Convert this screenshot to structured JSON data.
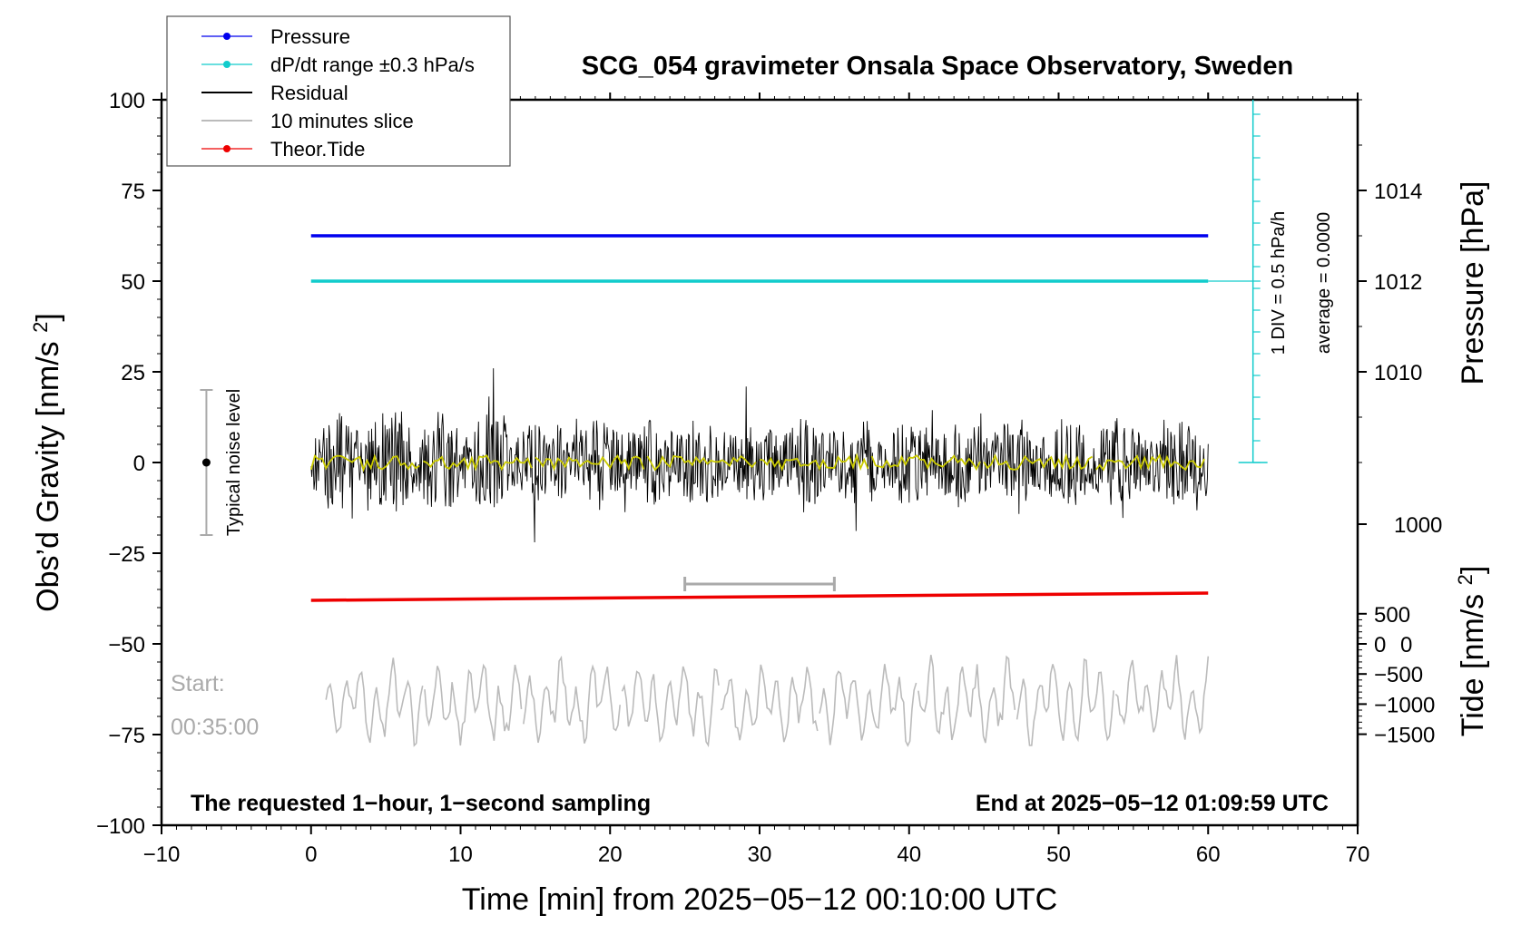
{
  "chart_data": {
    "type": "line",
    "title": "SCG_054 gravimeter Onsala Space Observatory, Sweden",
    "xlabel": "Time [min] from 2025−05−12 00:10:00 UTC",
    "ylabel_left": "Obs’d Gravity [nm/s2]",
    "ylabel_right_top": "Pressure [hPa]",
    "ylabel_right_bottom": "Tide [nm/s2]",
    "xlim": [
      -10,
      70
    ],
    "ylim": [
      -100,
      100
    ],
    "x_ticks": [
      "−10",
      "0",
      "10",
      "20",
      "30",
      "40",
      "50",
      "60",
      "70"
    ],
    "y_ticks": [
      "−100",
      "−75",
      "−50",
      "−25",
      "0",
      "25",
      "50",
      "75",
      "100"
    ],
    "pressure_ticks": [
      "1010",
      "1012",
      "1014"
    ],
    "pressure_ticks_lower": [
      "1000"
    ],
    "tide_ticks": [
      "−1500",
      "−1000",
      "−500",
      "0",
      "500"
    ],
    "legend": [
      {
        "label": "Pressure",
        "color": "#0000ee",
        "marker": true
      },
      {
        "label": "dP/dt range ±0.3 hPa/s",
        "color": "#11cccc",
        "marker": true
      },
      {
        "label": "Residual",
        "color": "#000000",
        "marker": false
      },
      {
        "label": "10 minutes slice",
        "color": "#bbbbbb",
        "marker": false
      },
      {
        "label": "Theor.Tide",
        "color": "#ee0000",
        "marker": true
      }
    ],
    "series": [
      {
        "name": "Pressure",
        "x": [
          0,
          60
        ],
        "y": [
          62.5,
          62.5
        ],
        "color": "#0000ee"
      },
      {
        "name": "dP/dt range ±0.3 hPa/s",
        "x": [
          0,
          60
        ],
        "y": [
          50,
          50
        ],
        "color": "#11cccc"
      },
      {
        "name": "Theor.Tide",
        "x": [
          0,
          60
        ],
        "y": [
          -38,
          -36
        ],
        "color": "#ee0000"
      },
      {
        "name": "Residual",
        "x_range": [
          0,
          60
        ],
        "center": 0,
        "amplitude_range": [
          -22,
          31
        ],
        "color": "#000000"
      },
      {
        "name": "10 minutes slice",
        "x_range": [
          1,
          60
        ],
        "center": -66,
        "amplitude_range": [
          -78,
          -46
        ],
        "color": "#bbbbbb"
      }
    ],
    "slice_marker": {
      "x": [
        25,
        35
      ],
      "y": -33.5
    },
    "noise_level": {
      "x": -7,
      "y": 0,
      "range": [
        -20,
        20
      ],
      "label": "Typical noise level"
    },
    "ddiv_scale": {
      "label_1": "1 DIV = 0.5 hPa/h",
      "label_2": "average = 0.0000"
    },
    "start_label": "Start:",
    "start_time": "00:35:00",
    "note_left": "The requested 1−hour, 1−second sampling",
    "note_right": "End at 2025−05−12 01:09:59 UTC"
  }
}
